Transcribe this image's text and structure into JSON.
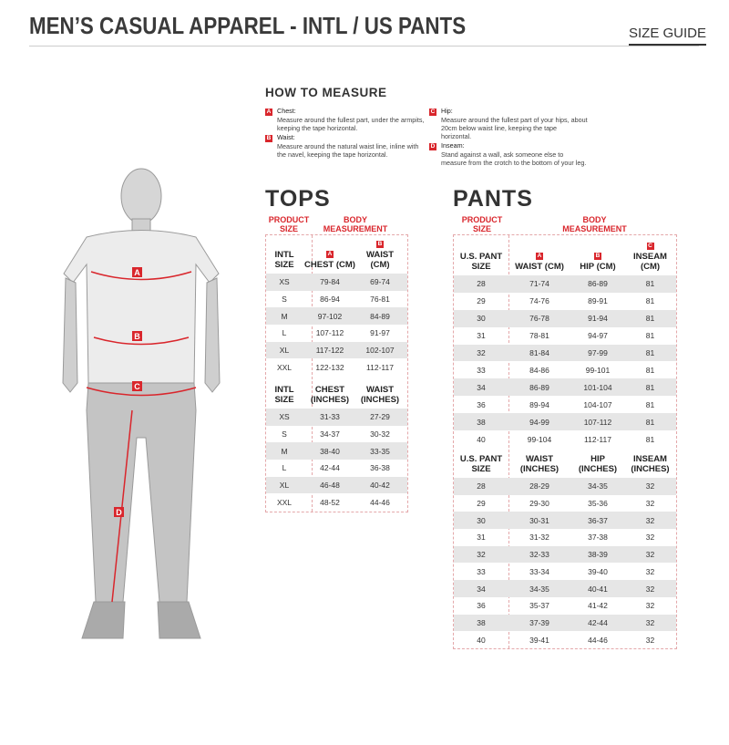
{
  "header": {
    "title": "MEN’S CASUAL APPAREL - INTL / US PANTS",
    "size_guide": "SIZE GUIDE"
  },
  "figure": {
    "labels": [
      "A",
      "B",
      "C",
      "D"
    ],
    "accent": "#d9262c"
  },
  "how_to_measure": {
    "title": "HOW TO MEASURE",
    "items": [
      {
        "letter": "A",
        "name": "Chest:",
        "text": "Measure around the fullest part, under the armpits, keeping the tape horizontal."
      },
      {
        "letter": "B",
        "name": "Waist:",
        "text": "Measure around the natural waist line, inline with the navel, keeping the tape horizontal."
      },
      {
        "letter": "C",
        "name": "Hip:",
        "text": "Measure around the fullest part of your hips, about 20cm below waist line, keeping the tape horizontal."
      },
      {
        "letter": "D",
        "name": "Inseam:",
        "text": "Stand against a wall, ask someone else to measure from the crotch to the bottom of your leg."
      }
    ]
  },
  "tops": {
    "title": "TOPS",
    "product_size": "PRODUCT SIZE",
    "body_measurement": "BODY MEASUREMENT",
    "letters": [
      "A",
      "B"
    ],
    "cm": {
      "headers": [
        "INTL SIZE",
        "CHEST (CM)",
        "WAIST (CM)"
      ],
      "rows": [
        [
          "XS",
          "79-84",
          "69-74"
        ],
        [
          "S",
          "86-94",
          "76-81"
        ],
        [
          "M",
          "97-102",
          "84-89"
        ],
        [
          "L",
          "107-112",
          "91-97"
        ],
        [
          "XL",
          "117-122",
          "102-107"
        ],
        [
          "XXL",
          "122-132",
          "112-117"
        ]
      ]
    },
    "inches": {
      "headers": [
        "INTL SIZE",
        "CHEST (INCHES)",
        "WAIST (INCHES)"
      ],
      "rows": [
        [
          "XS",
          "31-33",
          "27-29"
        ],
        [
          "S",
          "34-37",
          "30-32"
        ],
        [
          "M",
          "38-40",
          "33-35"
        ],
        [
          "L",
          "42-44",
          "36-38"
        ],
        [
          "XL",
          "46-48",
          "40-42"
        ],
        [
          "XXL",
          "48-52",
          "44-46"
        ]
      ]
    }
  },
  "pants": {
    "title": "PANTS",
    "product_size": "PRODUCT SIZE",
    "body_measurement": "BODY MEASUREMENT",
    "letters": [
      "A",
      "B",
      "C"
    ],
    "cm": {
      "headers": [
        "U.S. PANT SIZE",
        "WAIST (CM)",
        "HIP (CM)",
        "INSEAM (CM)"
      ],
      "rows": [
        [
          "28",
          "71-74",
          "86-89",
          "81"
        ],
        [
          "29",
          "74-76",
          "89-91",
          "81"
        ],
        [
          "30",
          "76-78",
          "91-94",
          "81"
        ],
        [
          "31",
          "78-81",
          "94-97",
          "81"
        ],
        [
          "32",
          "81-84",
          "97-99",
          "81"
        ],
        [
          "33",
          "84-86",
          "99-101",
          "81"
        ],
        [
          "34",
          "86-89",
          "101-104",
          "81"
        ],
        [
          "36",
          "89-94",
          "104-107",
          "81"
        ],
        [
          "38",
          "94-99",
          "107-112",
          "81"
        ],
        [
          "40",
          "99-104",
          "112-117",
          "81"
        ]
      ]
    },
    "inches": {
      "headers": [
        "U.S. PANT SIZE",
        "WAIST (INCHES)",
        "HIP (INCHES)",
        "INSEAM (INCHES)"
      ],
      "rows": [
        [
          "28",
          "28-29",
          "34-35",
          "32"
        ],
        [
          "29",
          "29-30",
          "35-36",
          "32"
        ],
        [
          "30",
          "30-31",
          "36-37",
          "32"
        ],
        [
          "31",
          "31-32",
          "37-38",
          "32"
        ],
        [
          "32",
          "32-33",
          "38-39",
          "32"
        ],
        [
          "33",
          "33-34",
          "39-40",
          "32"
        ],
        [
          "34",
          "34-35",
          "40-41",
          "32"
        ],
        [
          "36",
          "35-37",
          "41-42",
          "32"
        ],
        [
          "38",
          "37-39",
          "42-44",
          "32"
        ],
        [
          "40",
          "39-41",
          "44-46",
          "32"
        ]
      ]
    }
  }
}
